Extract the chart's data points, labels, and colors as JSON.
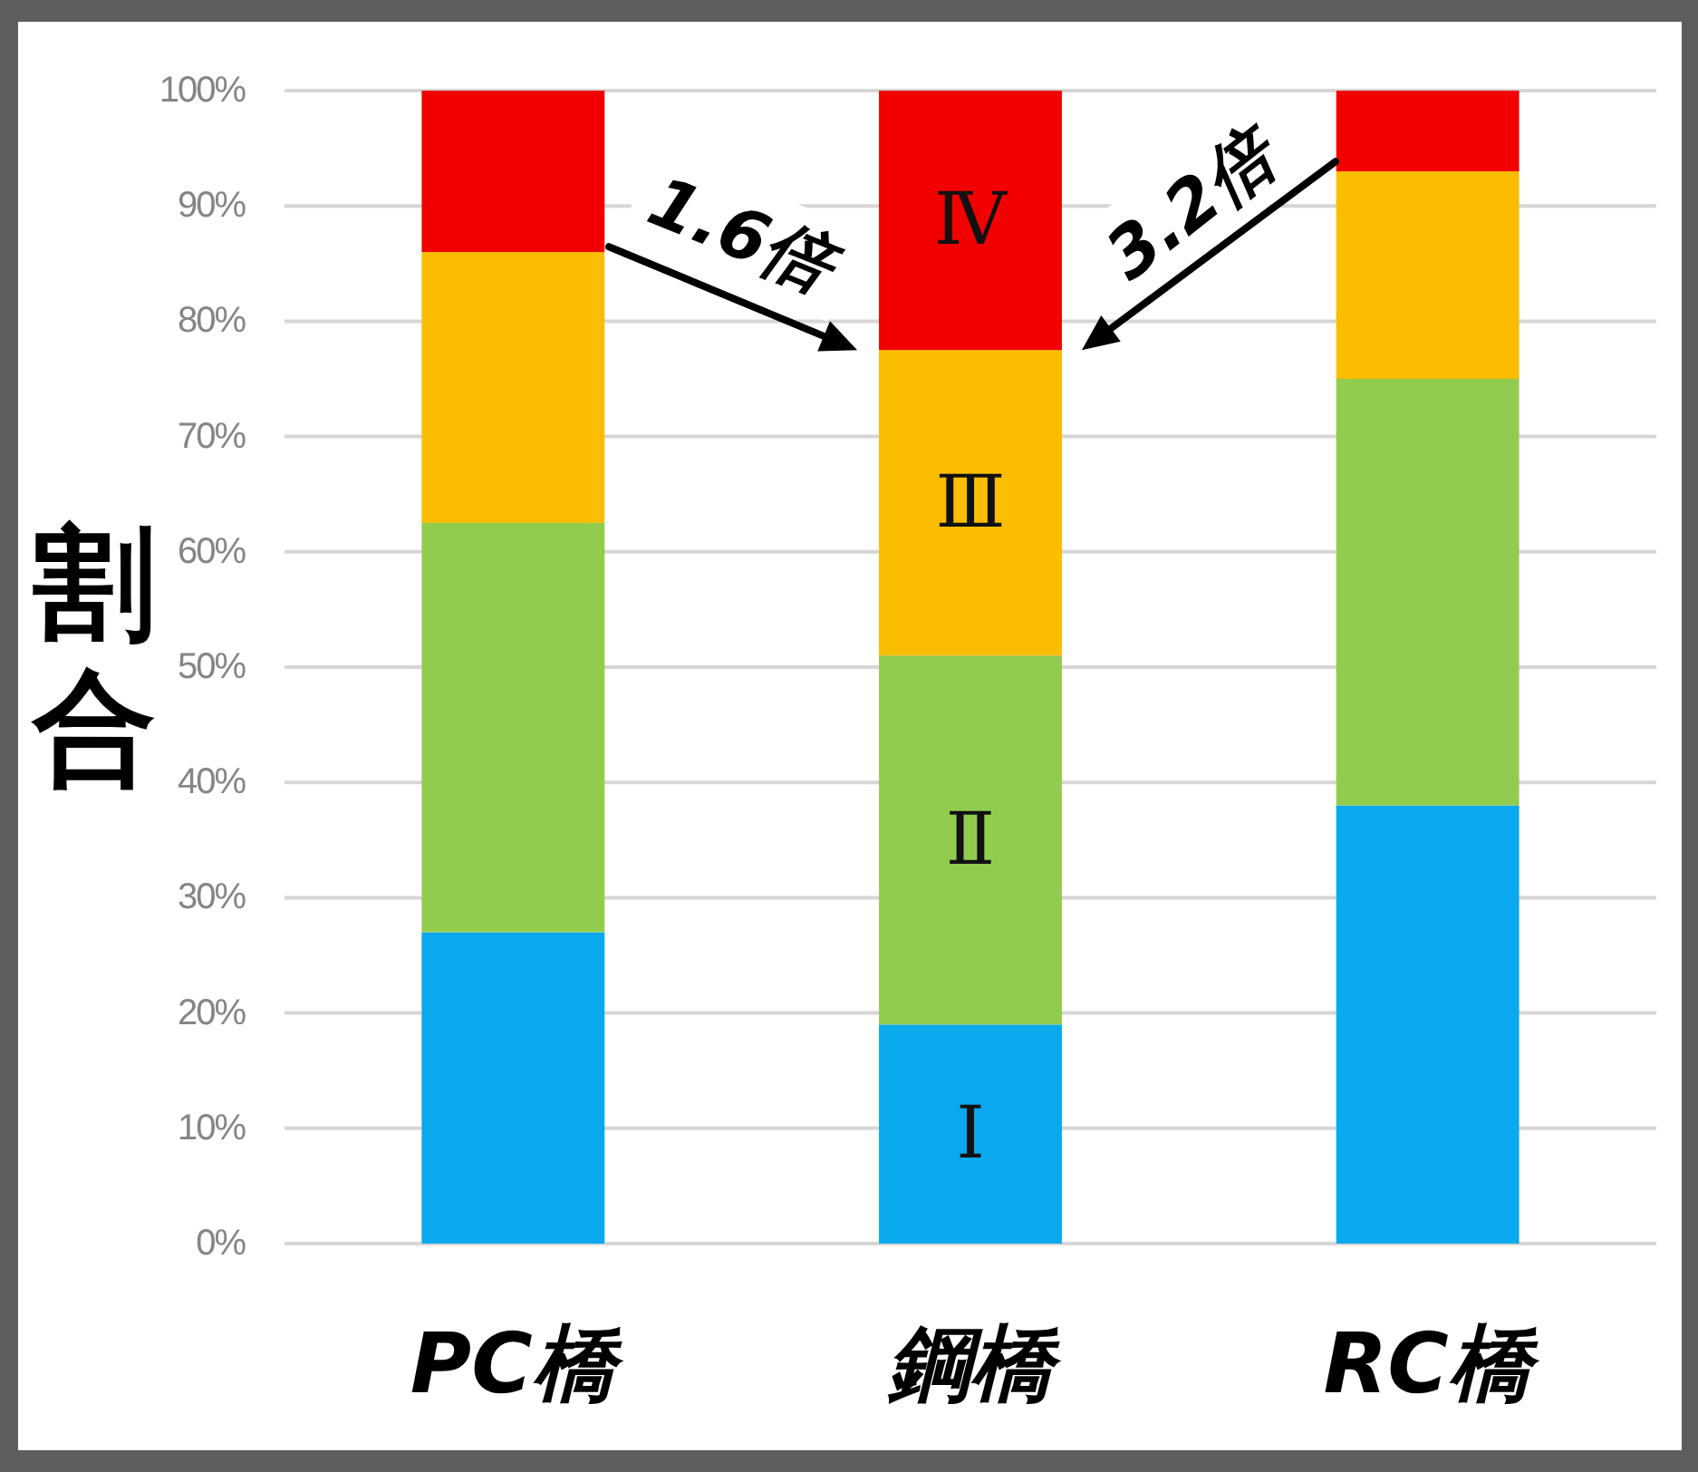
{
  "chart_data": {
    "type": "bar",
    "stacked": true,
    "ylabel": "割合",
    "categories": [
      "PC橋",
      "鋼橋",
      "RC橋"
    ],
    "series": [
      {
        "name": "Ⅰ",
        "color": "#0aa8ec",
        "values": [
          27,
          19,
          38
        ]
      },
      {
        "name": "Ⅱ",
        "color": "#92cc4f",
        "values": [
          35.5,
          32,
          37
        ]
      },
      {
        "name": "Ⅲ",
        "color": "#fbbd00",
        "values": [
          23.5,
          26.5,
          18
        ]
      },
      {
        "name": "Ⅳ",
        "color": "#f20000",
        "values": [
          14,
          22.5,
          7
        ]
      }
    ],
    "ylim": [
      0,
      100
    ],
    "yticks": [
      {
        "value": 0,
        "label": "0%"
      },
      {
        "value": 10,
        "label": "10%"
      },
      {
        "value": 20,
        "label": "20%"
      },
      {
        "value": 30,
        "label": "30%"
      },
      {
        "value": 40,
        "label": "40%"
      },
      {
        "value": 50,
        "label": "50%"
      },
      {
        "value": 60,
        "label": "60%"
      },
      {
        "value": 70,
        "label": "70%"
      },
      {
        "value": 80,
        "label": "80%"
      },
      {
        "value": 90,
        "label": "90%"
      },
      {
        "value": 100,
        "label": "100%"
      }
    ],
    "grid": "y",
    "annotations": [
      {
        "text": "1.6倍",
        "x": "鋼橋",
        "y": 77.5
      },
      {
        "text": "3.2倍",
        "x": "鋼橋",
        "y": 77.5
      }
    ]
  }
}
